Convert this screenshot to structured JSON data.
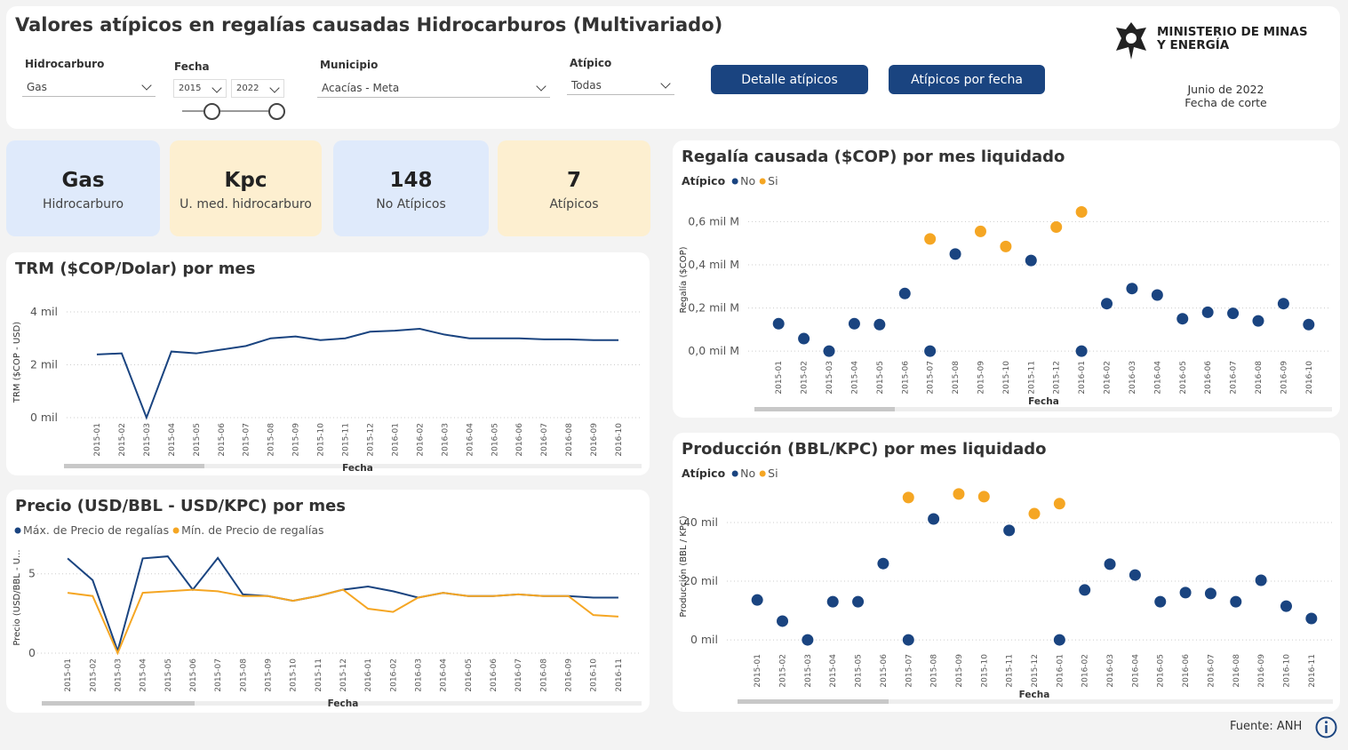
{
  "header": {
    "title": "Valores atípicos en regalías causadas Hidrocarburos (Multivariado)",
    "logo": [
      "MINISTERIO DE MINAS",
      "Y ENERGÍA"
    ],
    "date": "Junio de 2022",
    "date_label": "Fecha de corte"
  },
  "filters": [
    {
      "label": "Hidrocarburo",
      "value": "Gas"
    },
    {
      "label": "Fecha",
      "from": "2015",
      "to": "2022"
    },
    {
      "label": "Municipio",
      "value": "Acacías - Meta"
    },
    {
      "label": "Atípico",
      "value": "Todas"
    }
  ],
  "buttons": [
    "Detalle atípicos",
    "Atípicos por fecha"
  ],
  "cards": [
    {
      "value": "Gas",
      "label": "Hidrocarburo"
    },
    {
      "value": "Kpc",
      "label": "U. med. hidrocarburo"
    },
    {
      "value": "148",
      "label": "No Atípicos"
    },
    {
      "value": "7",
      "label": "Atípicos"
    }
  ],
  "footer": "Fuente: ANH",
  "chart_data": [
    {
      "type": "line",
      "title": "TRM ($COP/Dolar) por mes",
      "x_label": "Fecha",
      "y_label": "TRM ($COP - USD)",
      "categories": [
        "2015-01",
        "2015-02",
        "2015-03",
        "2015-04",
        "2015-05",
        "2015-06",
        "2015-07",
        "2015-08",
        "2015-09",
        "2015-10",
        "2015-11",
        "2015-12",
        "2016-01",
        "2016-02",
        "2016-03",
        "2016-04",
        "2016-05",
        "2016-06",
        "2016-07",
        "2016-08",
        "2016-09",
        "2016-10"
      ],
      "series": [
        {
          "name": "TRM",
          "color": "#1a4480",
          "values": [
            2390,
            2430,
            0,
            2500,
            2430,
            2570,
            2710,
            3000,
            3070,
            2930,
            3000,
            3250,
            3290,
            3360,
            3140,
            3000,
            3000,
            3000,
            2960,
            2960,
            2930,
            2930
          ]
        }
      ],
      "ylim": [
        0,
        4200
      ],
      "yticks": [
        {
          "value": 0,
          "label": "0 mil"
        },
        {
          "value": 2000,
          "label": "2 mil"
        },
        {
          "value": 4000,
          "label": "4 mil"
        }
      ],
      "grid": true
    },
    {
      "type": "line",
      "title": "Precio (USD/BBL - USD/KPC) por mes",
      "x_label": "Fecha",
      "y_label": "Precio (USD/BBL - U...",
      "categories": [
        "2015-01",
        "2015-02",
        "2015-03",
        "2015-04",
        "2015-05",
        "2015-06",
        "2015-07",
        "2015-08",
        "2015-09",
        "2015-10",
        "2015-11",
        "2015-12",
        "2016-01",
        "2016-02",
        "2016-03",
        "2016-04",
        "2016-05",
        "2016-06",
        "2016-07",
        "2016-08",
        "2016-09",
        "2016-10",
        "2016-11"
      ],
      "series": [
        {
          "name": "Máx. de Precio de regalías",
          "color": "#1a4480",
          "values": [
            5.97,
            4.6,
            0.14,
            5.97,
            6.1,
            4.0,
            6.0,
            3.7,
            3.6,
            3.3,
            3.6,
            4.0,
            4.2,
            3.9,
            3.5,
            3.8,
            3.6,
            3.6,
            3.7,
            3.6,
            3.6,
            3.5,
            3.5
          ]
        },
        {
          "name": "Mín. de Precio de regalías",
          "color": "#f5a623",
          "values": [
            3.8,
            3.6,
            0.0,
            3.8,
            3.9,
            4.0,
            3.9,
            3.6,
            3.6,
            3.3,
            3.6,
            4.0,
            2.8,
            2.6,
            3.5,
            3.8,
            3.6,
            3.6,
            3.7,
            3.6,
            3.6,
            2.4,
            2.3
          ]
        }
      ],
      "ylim": [
        0,
        7
      ],
      "yticks": [
        0,
        5
      ],
      "grid": true
    },
    {
      "type": "scatter",
      "title": "Regalía causada ($COP) por mes liquidado",
      "legend_title": "Atípico",
      "x_label": "Fecha",
      "y_label": "Regalía ($COP)",
      "categories": [
        "2015-01",
        "2015-02",
        "2015-03",
        "2015-04",
        "2015-05",
        "2015-06",
        "2015-07",
        "2015-08",
        "2015-09",
        "2015-10",
        "2015-11",
        "2015-12",
        "2016-01",
        "2016-02",
        "2016-03",
        "2016-04",
        "2016-05",
        "2016-06",
        "2016-07",
        "2016-08",
        "2016-09",
        "2016-10"
      ],
      "series": [
        {
          "name": "No",
          "color": "#1a4480",
          "values": [
            0.127,
            0.058,
            0,
            0.127,
            0.123,
            0.267,
            0,
            0.45,
            null,
            null,
            0.42,
            null,
            0,
            0.22,
            0.29,
            0.26,
            0.15,
            0.18,
            0.175,
            0.14,
            0.22,
            0.123
          ]
        },
        {
          "name": "Si",
          "color": "#f5a623",
          "values": [
            null,
            null,
            null,
            null,
            null,
            null,
            0.52,
            null,
            0.555,
            0.485,
            null,
            0.575,
            0.645,
            null,
            null,
            null,
            null,
            null,
            null,
            null,
            null,
            null
          ]
        }
      ],
      "ylim": [
        -0.02,
        0.68
      ],
      "yticks": [
        {
          "value": 0,
          "label": "0,0 mil M"
        },
        {
          "value": 0.2,
          "label": "0,2 mil M"
        },
        {
          "value": 0.4,
          "label": "0,4 mil M"
        },
        {
          "value": 0.6,
          "label": "0,6 mil M"
        }
      ],
      "grid": true
    },
    {
      "type": "scatter",
      "title": "Producción (BBL/KPC) por mes liquidado",
      "legend_title": "Atípico",
      "x_label": "Fecha",
      "y_label": "Producción (BBL / KPC)",
      "categories": [
        "2015-01",
        "2015-02",
        "2015-03",
        "2015-04",
        "2015-05",
        "2015-06",
        "2015-07",
        "2015-08",
        "2015-09",
        "2015-10",
        "2015-11",
        "2015-12",
        "2016-01",
        "2016-02",
        "2016-03",
        "2016-04",
        "2016-05",
        "2016-06",
        "2016-07",
        "2016-08",
        "2016-09",
        "2016-10",
        "2016-11"
      ],
      "series": [
        {
          "name": "No",
          "color": "#1a4480",
          "values": [
            13600,
            6400,
            0,
            13000,
            13000,
            26000,
            0,
            41200,
            null,
            null,
            37300,
            null,
            0,
            17000,
            25800,
            22100,
            13000,
            16100,
            15800,
            13000,
            20300,
            11500,
            7300
          ]
        },
        {
          "name": "Si",
          "color": "#f5a623",
          "values": [
            null,
            null,
            null,
            null,
            null,
            null,
            48500,
            null,
            49700,
            48800,
            null,
            43000,
            46400,
            null,
            null,
            null,
            null,
            null,
            null,
            null,
            null,
            null,
            null
          ]
        }
      ],
      "ylim": [
        -3000,
        53000
      ],
      "yticks": [
        {
          "value": 0,
          "label": "0 mil"
        },
        {
          "value": 20000,
          "label": "20 mil"
        },
        {
          "value": 40000,
          "label": "40 mil"
        }
      ],
      "grid": true
    }
  ]
}
